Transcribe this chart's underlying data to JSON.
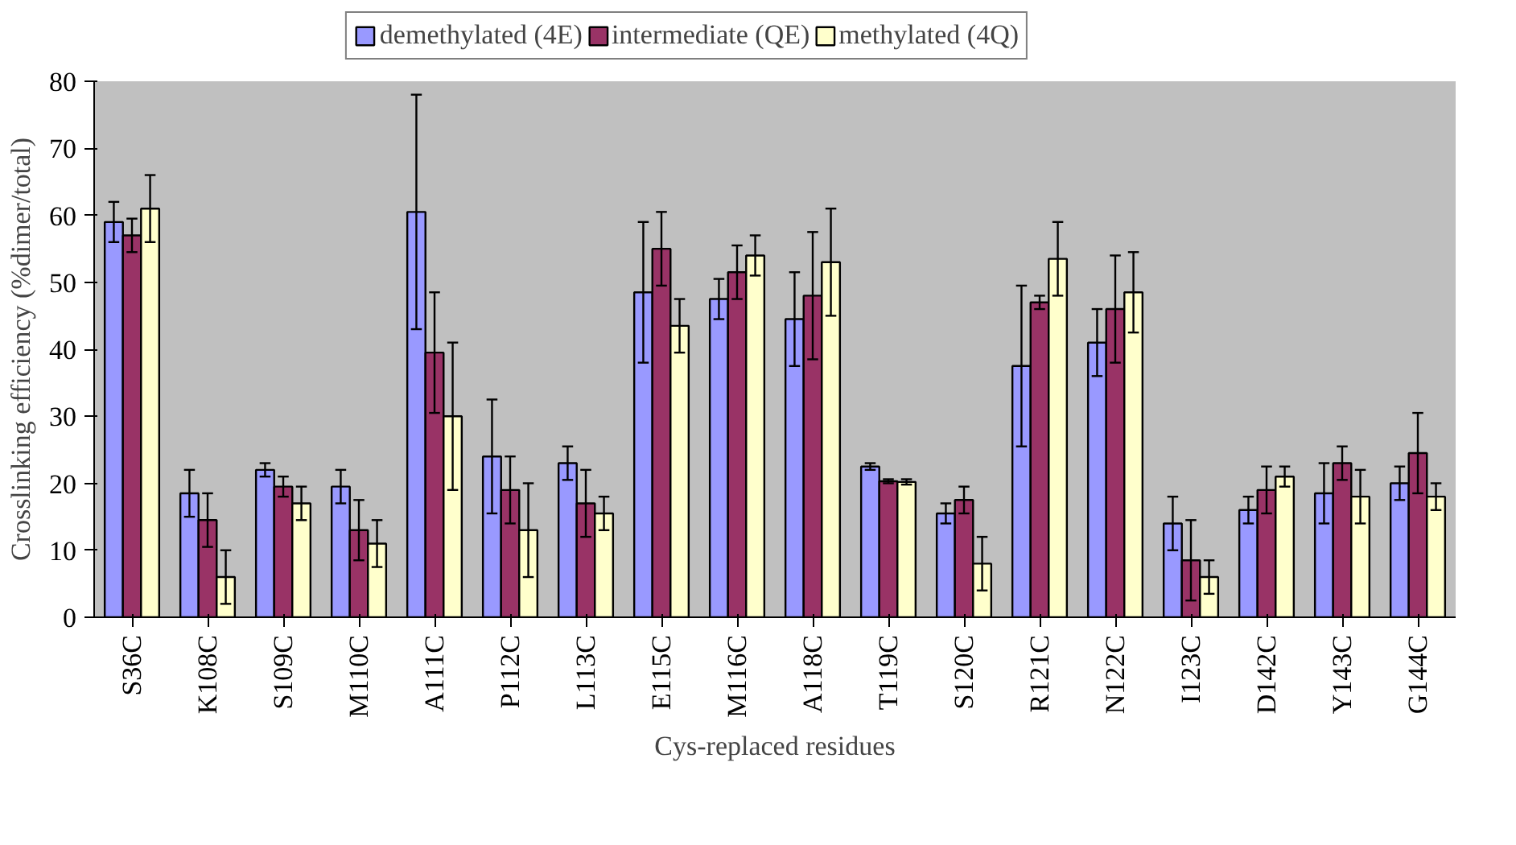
{
  "chart_data": {
    "type": "bar",
    "xlabel": "Cys-replaced residues",
    "ylabel": "Crosslinking efficiency (%dimer/total)",
    "categories": [
      "S36C",
      "K108C",
      "S109C",
      "M110C",
      "A111C",
      "P112C",
      "L113C",
      "E115C",
      "M116C",
      "A118C",
      "T119C",
      "S120C",
      "R121C",
      "N122C",
      "I123C",
      "D142C",
      "Y143C",
      "G144C"
    ],
    "series": [
      {
        "name": "demethylated (4E)",
        "color": "#9999ff",
        "values": [
          59,
          18.5,
          22,
          19.5,
          60.5,
          24,
          23,
          48.5,
          47.5,
          44.5,
          22.5,
          15.5,
          37.5,
          41,
          14,
          16,
          18.5,
          20
        ],
        "errors": [
          3,
          3.5,
          1,
          2.5,
          17.5,
          8.5,
          2.5,
          10.5,
          3,
          7,
          0.5,
          1.5,
          12,
          5,
          4,
          2,
          4.5,
          2.5
        ]
      },
      {
        "name": "intermediate (QE)",
        "color": "#993366",
        "values": [
          57,
          14.5,
          19.5,
          13,
          39.5,
          19,
          17,
          55,
          51.5,
          48,
          20.3,
          17.5,
          47,
          46,
          8.5,
          19,
          23,
          24.5
        ],
        "errors": [
          2.5,
          4,
          1.5,
          4.5,
          9,
          5,
          5,
          5.5,
          4,
          9.5,
          0.3,
          2,
          1,
          8,
          6,
          3.5,
          2.5,
          6
        ]
      },
      {
        "name": "methylated (4Q)",
        "color": "#ffffcc",
        "values": [
          61,
          6,
          17,
          11,
          30,
          13,
          15.5,
          43.5,
          54,
          53,
          20.2,
          8,
          53.5,
          48.5,
          6,
          21,
          18,
          18
        ],
        "errors": [
          5,
          4,
          2.5,
          3.5,
          11,
          7,
          2.5,
          4,
          3,
          8,
          0.4,
          4,
          5.5,
          6,
          2.5,
          1.5,
          4,
          2
        ]
      }
    ],
    "ylim": [
      0,
      80
    ],
    "yticks": [
      0,
      10,
      20,
      30,
      40,
      50,
      60,
      70,
      80
    ],
    "grid": false,
    "legend": "top"
  }
}
